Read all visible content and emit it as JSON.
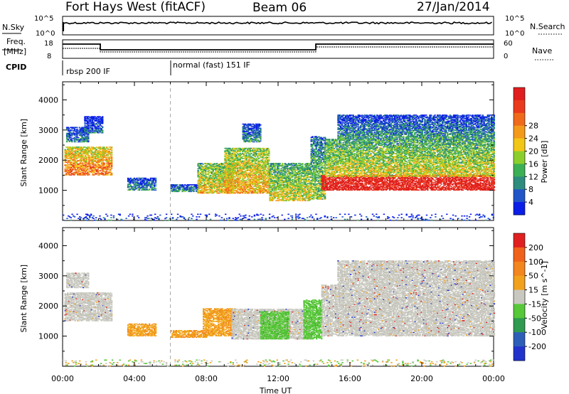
{
  "header": {
    "title": "Fort Hays West (fitACF)",
    "beam": "Beam 06",
    "date": "27/Jan/2014"
  },
  "top_strip": {
    "nsky_label": "N.Sky",
    "nsearch_label": "N.Search",
    "freq_label_line1": "Freq.",
    "freq_label_line2": "[MHz]",
    "nave_label": "Nave",
    "cpid_label": "CPID",
    "sky_ticks": [
      "10^5",
      "10^0"
    ],
    "search_ticks": [
      "10^5",
      "10^0"
    ],
    "freq_ticks": [
      "18",
      "8"
    ],
    "nave_ticks": [
      "60",
      "0"
    ],
    "cpid_segments": [
      {
        "label": "rbsp 200 IF",
        "start_hour": 0
      },
      {
        "label": "normal (fast) 151 IF",
        "start_hour": 6
      }
    ]
  },
  "chart_data": [
    {
      "type": "heatmap",
      "name": "power-panel",
      "ylabel": "Slant Range [km]",
      "ylim": [
        0,
        4600
      ],
      "yticks": [
        1000,
        2000,
        3000,
        4000
      ],
      "xlim_hours": [
        0,
        24
      ],
      "xtick_labels": [
        "00:00",
        "04:00",
        "08:00",
        "12:00",
        "16:00",
        "20:00",
        "00:00"
      ],
      "colorbar": {
        "label": "Power [dB]",
        "ticks": [
          "4",
          "8",
          "12",
          "16",
          "20",
          "24",
          "28"
        ],
        "colors": [
          "#0a1ee8",
          "#2255c8",
          "#2e8c7e",
          "#3cb054",
          "#8ccf2c",
          "#f2c617",
          "#f49a1b",
          "#f06a1c",
          "#ea3a1d",
          "#e01e1e"
        ]
      },
      "regions": [
        {
          "t0": 0.1,
          "t1": 2.7,
          "r0": 1500,
          "r1": 2450,
          "level": 0.75
        },
        {
          "t0": 0.2,
          "t1": 1.4,
          "r0": 2600,
          "r1": 3100,
          "level": 0.25
        },
        {
          "t0": 1.2,
          "t1": 2.2,
          "r0": 2900,
          "r1": 3450,
          "level": 0.2
        },
        {
          "t0": 3.6,
          "t1": 5.2,
          "r0": 1000,
          "r1": 1400,
          "level": 0.3
        },
        {
          "t0": 6.0,
          "t1": 7.5,
          "r0": 950,
          "r1": 1200,
          "level": 0.3
        },
        {
          "t0": 7.5,
          "t1": 9.5,
          "r0": 900,
          "r1": 1900,
          "level": 0.6
        },
        {
          "t0": 9.0,
          "t1": 11.5,
          "r0": 900,
          "r1": 2400,
          "level": 0.65
        },
        {
          "t0": 10.0,
          "t1": 11.0,
          "r0": 2600,
          "r1": 3200,
          "level": 0.3
        },
        {
          "t0": 11.5,
          "t1": 13.8,
          "r0": 650,
          "r1": 1900,
          "level": 0.55
        },
        {
          "t0": 13.8,
          "t1": 14.6,
          "r0": 700,
          "r1": 2800,
          "level": 0.45
        },
        {
          "t0": 14.4,
          "t1": 24.0,
          "r0": 1000,
          "r1": 1500,
          "level": 0.95
        },
        {
          "t0": 14.6,
          "t1": 24.0,
          "r0": 1450,
          "r1": 2700,
          "level": 0.55
        },
        {
          "t0": 15.3,
          "t1": 24.0,
          "r0": 2700,
          "r1": 3500,
          "level": 0.3
        },
        {
          "t0": 0.0,
          "t1": 24.0,
          "r0": 0,
          "r1": 200,
          "level": 0.15
        }
      ]
    },
    {
      "type": "heatmap",
      "name": "velocity-panel",
      "ylabel": "Slant Range [km]",
      "xlabel": "Time UT",
      "ylim": [
        0,
        4600
      ],
      "yticks": [
        1000,
        2000,
        3000,
        4000
      ],
      "xlim_hours": [
        0,
        24
      ],
      "xtick_labels": [
        "00:00",
        "04:00",
        "08:00",
        "12:00",
        "16:00",
        "20:00",
        "00:00"
      ],
      "colorbar": {
        "label": "Velocity [m s^-1]",
        "ticks": [
          "200",
          "100",
          "50",
          "15",
          "-15",
          "-50",
          "-100",
          "-200"
        ],
        "colors": [
          "#2233cc",
          "#2e5fb8",
          "#2f9a50",
          "#56c83a",
          "#c8c8c0",
          "#f2a11c",
          "#f3861e",
          "#f0621c",
          "#e02020"
        ]
      },
      "regions": [
        {
          "t0": 0.1,
          "t1": 2.7,
          "r0": 1500,
          "r1": 2450,
          "vel": "gray"
        },
        {
          "t0": 0.2,
          "t1": 1.4,
          "r0": 2600,
          "r1": 3100,
          "vel": "gray"
        },
        {
          "t0": 3.6,
          "t1": 5.2,
          "r0": 1000,
          "r1": 1400,
          "vel": "orange"
        },
        {
          "t0": 6.0,
          "t1": 8.0,
          "r0": 950,
          "r1": 1200,
          "vel": "orange"
        },
        {
          "t0": 7.8,
          "t1": 9.6,
          "r0": 1000,
          "r1": 1900,
          "vel": "orange"
        },
        {
          "t0": 9.4,
          "t1": 13.8,
          "r0": 900,
          "r1": 1900,
          "vel": "gray"
        },
        {
          "t0": 11.0,
          "t1": 12.6,
          "r0": 900,
          "r1": 1800,
          "vel": "green"
        },
        {
          "t0": 13.4,
          "t1": 14.4,
          "r0": 900,
          "r1": 2200,
          "vel": "green"
        },
        {
          "t0": 14.4,
          "t1": 24.0,
          "r0": 1000,
          "r1": 2700,
          "vel": "gray"
        },
        {
          "t0": 15.3,
          "t1": 24.0,
          "r0": 2700,
          "r1": 3500,
          "vel": "gray"
        },
        {
          "t0": 0.0,
          "t1": 24.0,
          "r0": 0,
          "r1": 200,
          "vel": "mixed"
        }
      ]
    }
  ]
}
